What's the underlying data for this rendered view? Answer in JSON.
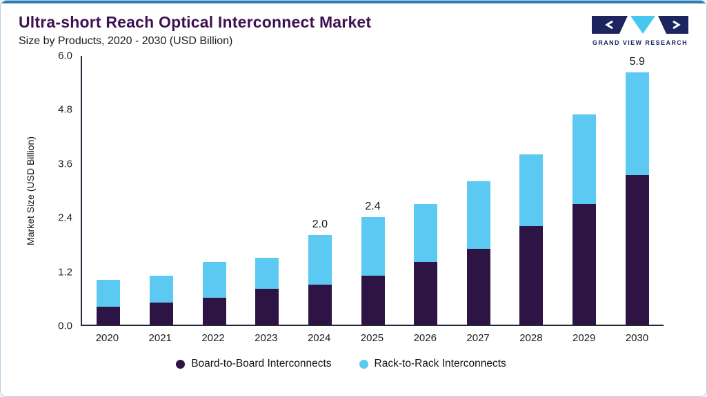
{
  "header": {
    "title": "Ultra-short Reach Optical Interconnect Market",
    "subtitle": "Size by Products, 2020 - 2030 (USD Billion)",
    "logo_text": "GRAND VIEW RESEARCH"
  },
  "colors": {
    "accent_line": "#2e7cb5",
    "card_border": "#b5cfe0",
    "title_text": "#3d1152",
    "axis_line": "#26263a",
    "board_series": "#2e1445",
    "rack_series": "#5bc9f1",
    "logo_navy": "#1c2560",
    "logo_blue": "#45c7f0"
  },
  "chart_data": {
    "type": "bar",
    "stacked": true,
    "title": "Ultra-short Reach Optical Interconnect Market Size by Products, 2020 - 2030 (USD Billion)",
    "categories": [
      "2020",
      "2021",
      "2022",
      "2023",
      "2024",
      "2025",
      "2026",
      "2027",
      "2028",
      "2029",
      "2030"
    ],
    "series": [
      {
        "name": "Board-to-Board Interconnects",
        "color": "#2e1445",
        "values": [
          0.4,
          0.5,
          0.6,
          0.8,
          0.9,
          1.1,
          1.4,
          1.7,
          2.2,
          2.7,
          3.5
        ]
      },
      {
        "name": "Rack-to-Rack Interconnects",
        "color": "#5bc9f1",
        "values": [
          0.6,
          0.6,
          0.8,
          0.7,
          1.1,
          1.3,
          1.3,
          1.5,
          1.6,
          2.0,
          2.4
        ]
      }
    ],
    "totals": [
      1.0,
      1.1,
      1.4,
      1.5,
      2.0,
      2.4,
      2.7,
      3.2,
      3.8,
      4.7,
      5.9
    ],
    "total_labels": [
      "",
      "",
      "",
      "",
      "2.0",
      "2.4",
      "",
      "",
      "",
      "",
      "5.9"
    ],
    "xlabel": "",
    "ylabel": "Market Size (USD Billion)",
    "ylim": [
      0,
      6
    ],
    "yticks": [
      "0.0",
      "1.2",
      "2.4",
      "3.6",
      "4.8",
      "6.0"
    ],
    "grid": false,
    "legend_position": "bottom"
  }
}
